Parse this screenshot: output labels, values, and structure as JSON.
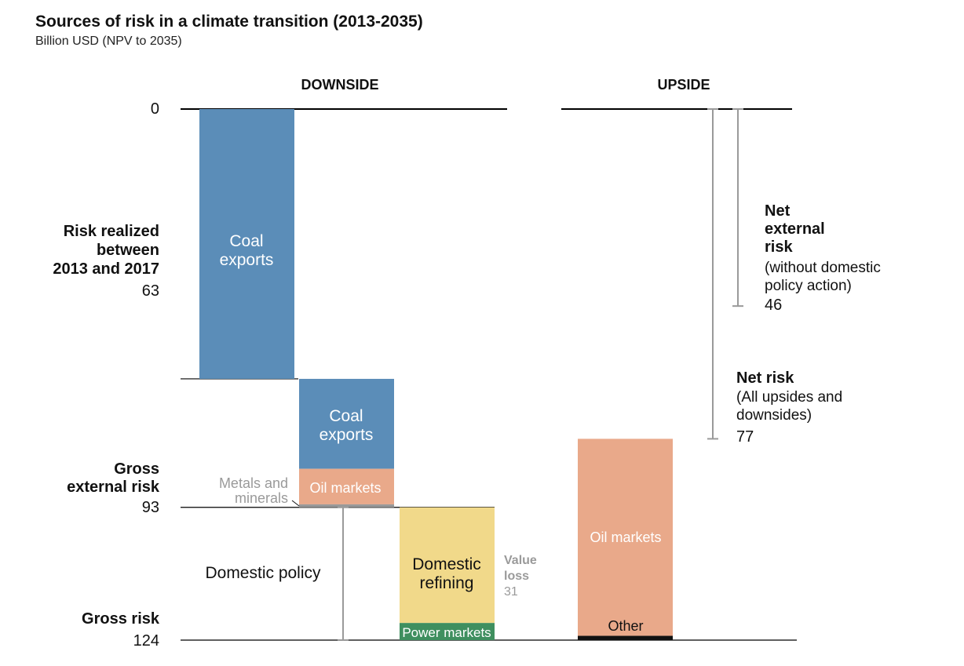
{
  "title": "Sources of risk in a climate transition (2013-2035)",
  "subtitle": "Billion USD (NPV to 2035)",
  "colors": {
    "coal": "#5b8db8",
    "oil": "#e9a98a",
    "refining": "#f1d98a",
    "power": "#3f8f5f",
    "metals": "#999999",
    "other": "#111111",
    "bracket": "#9a9a9a"
  },
  "chart_data": {
    "type": "bar",
    "subtype": "waterfall",
    "ylim": [
      0,
      124
    ],
    "y_inverted": true,
    "grid": false,
    "panels": {
      "downside": "DOWNSIDE",
      "upside": "UPSIDE"
    },
    "levels": [
      {
        "name": "zero",
        "label": "",
        "value": 0,
        "value_label": "0"
      },
      {
        "name": "risk-realized",
        "label": "Risk realized between 2013 and 2017",
        "lines": [
          "Risk realized",
          "between",
          "2013 and 2017"
        ],
        "value": 63,
        "value_label": "63"
      },
      {
        "name": "gross-external-risk",
        "label": "Gross external risk",
        "lines": [
          "Gross",
          "external risk"
        ],
        "value": 93,
        "value_label": "93"
      },
      {
        "name": "gross-risk",
        "label": "Gross risk",
        "lines": [
          "Gross risk"
        ],
        "value": 124,
        "value_label": "124"
      }
    ],
    "downside": [
      {
        "name": "coal-exports-realized",
        "label": "Coal exports",
        "lines": [
          "Coal",
          "exports"
        ],
        "start": 0,
        "end": 63,
        "color": "coal"
      },
      {
        "name": "coal-exports-future",
        "label": "Coal exports",
        "lines": [
          "Coal",
          "exports"
        ],
        "start": 63,
        "end": 84,
        "color": "coal"
      },
      {
        "name": "oil-markets-downside",
        "label": "Oil markets",
        "lines": [
          "Oil markets"
        ],
        "start": 84,
        "end": 92.3,
        "color": "oil"
      },
      {
        "name": "metals-and-minerals",
        "label": "Metals and minerals",
        "lines": [
          "Metals and",
          "minerals"
        ],
        "start": 92.3,
        "end": 93,
        "color": "metals"
      },
      {
        "name": "domestic-refining",
        "label": "Domestic refining",
        "lines": [
          "Domestic",
          "refining"
        ],
        "start": 93,
        "end": 120,
        "color": "refining"
      },
      {
        "name": "power-markets",
        "label": "Power markets",
        "lines": [
          "Power markets"
        ],
        "start": 120,
        "end": 124,
        "color": "power"
      }
    ],
    "upside": [
      {
        "name": "oil-markets-upside",
        "label": "Oil markets",
        "lines": [
          "Oil markets"
        ],
        "start": 77,
        "end": 123,
        "color": "oil"
      },
      {
        "name": "other",
        "label": "Other",
        "lines": [
          "Other"
        ],
        "start": 123,
        "end": 124,
        "color": "other"
      }
    ],
    "annotations": {
      "domestic_policy": {
        "label": "Domestic policy",
        "start": 93,
        "end": 124
      },
      "value_loss": {
        "lines": [
          "Value",
          "loss"
        ],
        "value": 31,
        "value_label": "31"
      },
      "net_external_risk": {
        "lines": [
          "Net",
          "external",
          "risk"
        ],
        "note_lines": [
          "(without domestic",
          "policy action)"
        ],
        "value": 46,
        "value_label": "46"
      },
      "net_risk": {
        "lines": [
          "Net risk"
        ],
        "note_lines": [
          "(All upsides and",
          "downsides)"
        ],
        "value": 77,
        "value_label": "77"
      }
    }
  }
}
